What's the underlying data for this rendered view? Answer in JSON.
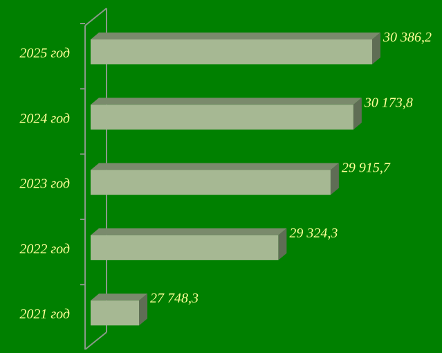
{
  "chart_data": {
    "type": "bar",
    "orientation": "horizontal",
    "style": "3d",
    "categories": [
      "2025 год",
      "2024 год",
      "2023 год",
      "2022 год",
      "2021 год"
    ],
    "values": [
      30386.2,
      30173.8,
      29915.7,
      29324.3,
      27748.3
    ],
    "value_labels": [
      "30 386,2",
      "30 173,8",
      "29 915,7",
      "29 324,3",
      "27 748,3"
    ],
    "title": "",
    "xlabel": "",
    "ylabel": "",
    "xlim": [
      27200,
      30700
    ],
    "grid": false,
    "legend": "none",
    "colors": {
      "background": "#008000",
      "bar_front": "#a6b893",
      "bar_top": "#7a8a6c",
      "bar_side": "#5f6d55",
      "axis": "#8a9a8a",
      "label_text": "#ffff99"
    }
  }
}
